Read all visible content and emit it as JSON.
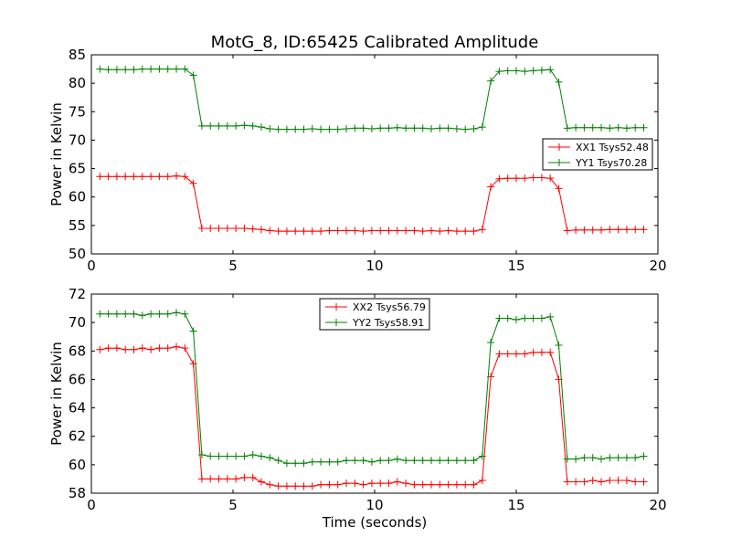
{
  "figure": {
    "title": "MotG_8, ID:65425 Calibrated Amplitude"
  },
  "chart_data": [
    {
      "type": "line",
      "title": "MotG_8, ID:65425 Calibrated Amplitude",
      "xlabel": "",
      "ylabel": "Power in Kelvin",
      "xlim": [
        0,
        20
      ],
      "ylim": [
        50,
        85
      ],
      "xticks": [
        "0",
        "5",
        "10",
        "15",
        "20"
      ],
      "yticks": [
        "50",
        "55",
        "60",
        "65",
        "70",
        "75",
        "80",
        "85"
      ],
      "legend_position": "center-right",
      "grid": false,
      "x": [
        0.3,
        0.6,
        0.9,
        1.2,
        1.5,
        1.8,
        2.1,
        2.4,
        2.7,
        3.0,
        3.3,
        3.6,
        3.9,
        4.2,
        4.5,
        4.8,
        5.1,
        5.4,
        5.7,
        6.0,
        6.3,
        6.6,
        6.9,
        7.2,
        7.5,
        7.8,
        8.1,
        8.4,
        8.7,
        9.0,
        9.3,
        9.6,
        9.9,
        10.2,
        10.5,
        10.8,
        11.1,
        11.4,
        11.7,
        12.0,
        12.3,
        12.6,
        12.9,
        13.2,
        13.5,
        13.8,
        14.1,
        14.4,
        14.7,
        15.0,
        15.3,
        15.6,
        15.9,
        16.2,
        16.5,
        16.8,
        17.1,
        17.4,
        17.7,
        18.0,
        18.3,
        18.6,
        18.9,
        19.2,
        19.5
      ],
      "series": [
        {
          "name": "XX1 Tsys52.48",
          "color": "#ff0000",
          "values": [
            63.6,
            63.6,
            63.6,
            63.6,
            63.6,
            63.6,
            63.6,
            63.6,
            63.6,
            63.7,
            63.6,
            62.4,
            54.5,
            54.5,
            54.5,
            54.5,
            54.5,
            54.5,
            54.4,
            54.3,
            54.1,
            54.0,
            54.0,
            54.0,
            54.0,
            54.0,
            54.0,
            54.1,
            54.1,
            54.1,
            54.1,
            54.0,
            54.1,
            54.1,
            54.1,
            54.1,
            54.1,
            54.1,
            54.0,
            54.1,
            54.0,
            54.1,
            54.0,
            54.0,
            54.0,
            54.3,
            61.8,
            63.2,
            63.3,
            63.3,
            63.3,
            63.4,
            63.4,
            63.3,
            61.5,
            54.1,
            54.2,
            54.2,
            54.2,
            54.2,
            54.3,
            54.3,
            54.3,
            54.3,
            54.3
          ]
        },
        {
          "name": "YY1 Tsys70.28",
          "color": "#008000",
          "values": [
            82.5,
            82.4,
            82.4,
            82.4,
            82.4,
            82.5,
            82.5,
            82.5,
            82.5,
            82.5,
            82.5,
            81.4,
            72.5,
            72.5,
            72.5,
            72.5,
            72.5,
            72.6,
            72.5,
            72.3,
            72.0,
            71.9,
            71.9,
            71.9,
            71.9,
            72.0,
            71.9,
            71.9,
            71.9,
            72.0,
            72.1,
            72.1,
            72.0,
            72.1,
            72.1,
            72.2,
            72.1,
            72.1,
            72.1,
            72.0,
            72.1,
            72.1,
            72.0,
            71.9,
            72.0,
            72.3,
            80.4,
            82.1,
            82.2,
            82.2,
            82.1,
            82.2,
            82.3,
            82.4,
            80.2,
            72.1,
            72.2,
            72.2,
            72.2,
            72.2,
            72.1,
            72.2,
            72.1,
            72.2,
            72.2
          ]
        }
      ]
    },
    {
      "type": "line",
      "title": "",
      "xlabel": "Time (seconds)",
      "ylabel": "Power in Kelvin",
      "xlim": [
        0,
        20
      ],
      "ylim": [
        58,
        72
      ],
      "xticks": [
        "0",
        "5",
        "10",
        "15",
        "20"
      ],
      "yticks": [
        "58",
        "60",
        "62",
        "64",
        "66",
        "68",
        "70",
        "72"
      ],
      "legend_position": "upper-center",
      "grid": false,
      "x": [
        0.3,
        0.6,
        0.9,
        1.2,
        1.5,
        1.8,
        2.1,
        2.4,
        2.7,
        3.0,
        3.3,
        3.6,
        3.9,
        4.2,
        4.5,
        4.8,
        5.1,
        5.4,
        5.7,
        6.0,
        6.3,
        6.6,
        6.9,
        7.2,
        7.5,
        7.8,
        8.1,
        8.4,
        8.7,
        9.0,
        9.3,
        9.6,
        9.9,
        10.2,
        10.5,
        10.8,
        11.1,
        11.4,
        11.7,
        12.0,
        12.3,
        12.6,
        12.9,
        13.2,
        13.5,
        13.8,
        14.1,
        14.4,
        14.7,
        15.0,
        15.3,
        15.6,
        15.9,
        16.2,
        16.5,
        16.8,
        17.1,
        17.4,
        17.7,
        18.0,
        18.3,
        18.6,
        18.9,
        19.2,
        19.5
      ],
      "series": [
        {
          "name": "XX2 Tsys56.79",
          "color": "#ff0000",
          "values": [
            68.1,
            68.2,
            68.2,
            68.1,
            68.1,
            68.2,
            68.1,
            68.2,
            68.2,
            68.3,
            68.2,
            67.1,
            59.0,
            59.0,
            59.0,
            59.0,
            59.0,
            59.1,
            59.1,
            58.8,
            58.6,
            58.5,
            58.5,
            58.5,
            58.5,
            58.5,
            58.6,
            58.6,
            58.6,
            58.7,
            58.7,
            58.6,
            58.7,
            58.7,
            58.7,
            58.8,
            58.7,
            58.6,
            58.6,
            58.6,
            58.6,
            58.6,
            58.6,
            58.6,
            58.6,
            58.9,
            66.2,
            67.8,
            67.8,
            67.8,
            67.8,
            67.9,
            67.9,
            67.9,
            66.0,
            58.8,
            58.8,
            58.8,
            58.9,
            58.8,
            58.9,
            58.9,
            58.9,
            58.8,
            58.8
          ]
        },
        {
          "name": "YY2 Tsys58.91",
          "color": "#008000",
          "values": [
            70.6,
            70.6,
            70.6,
            70.6,
            70.6,
            70.5,
            70.6,
            70.6,
            70.6,
            70.7,
            70.6,
            69.4,
            60.7,
            60.6,
            60.6,
            60.6,
            60.6,
            60.6,
            60.7,
            60.6,
            60.5,
            60.3,
            60.1,
            60.1,
            60.1,
            60.2,
            60.2,
            60.2,
            60.2,
            60.3,
            60.3,
            60.3,
            60.2,
            60.3,
            60.3,
            60.4,
            60.3,
            60.3,
            60.3,
            60.3,
            60.3,
            60.3,
            60.3,
            60.3,
            60.3,
            60.6,
            68.6,
            70.3,
            70.3,
            70.2,
            70.3,
            70.3,
            70.3,
            70.4,
            68.4,
            60.4,
            60.4,
            60.5,
            60.5,
            60.4,
            60.5,
            60.5,
            60.5,
            60.5,
            60.6
          ]
        }
      ]
    }
  ]
}
